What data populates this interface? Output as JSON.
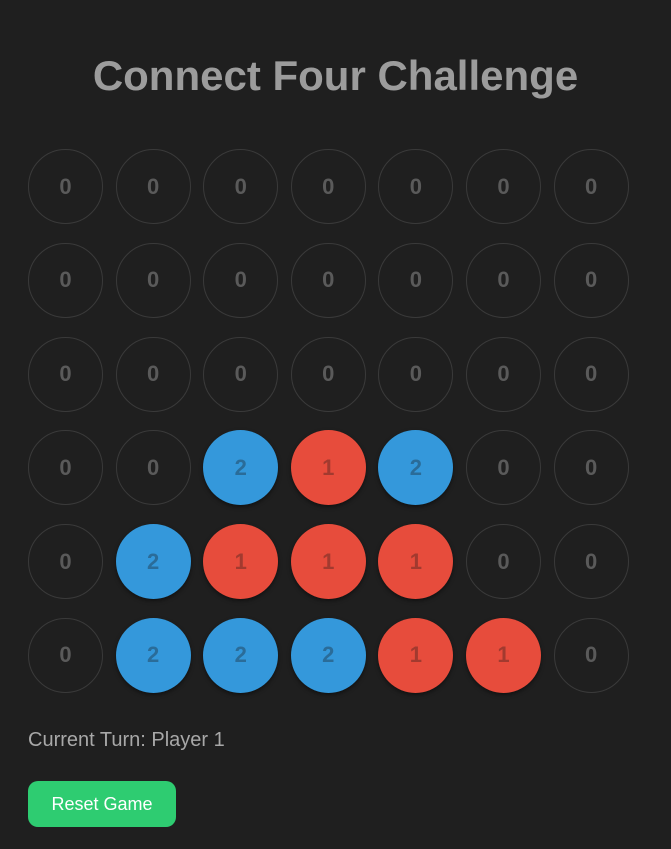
{
  "title": "Connect Four Challenge",
  "board": {
    "rows": 6,
    "cols": 7,
    "cells": [
      [
        0,
        0,
        0,
        0,
        0,
        0,
        0
      ],
      [
        0,
        0,
        0,
        0,
        0,
        0,
        0
      ],
      [
        0,
        0,
        0,
        0,
        0,
        0,
        0
      ],
      [
        0,
        0,
        2,
        1,
        2,
        0,
        0
      ],
      [
        0,
        2,
        1,
        1,
        1,
        0,
        0
      ],
      [
        0,
        2,
        2,
        2,
        1,
        1,
        0
      ]
    ]
  },
  "status": {
    "text": "Current Turn: Player 1"
  },
  "reset_button": {
    "label": "Reset Game"
  },
  "colors": {
    "background": "#1f1f1f",
    "player1": "#e74c3c",
    "player2": "#3498db",
    "reset_button": "#2ecc71"
  }
}
